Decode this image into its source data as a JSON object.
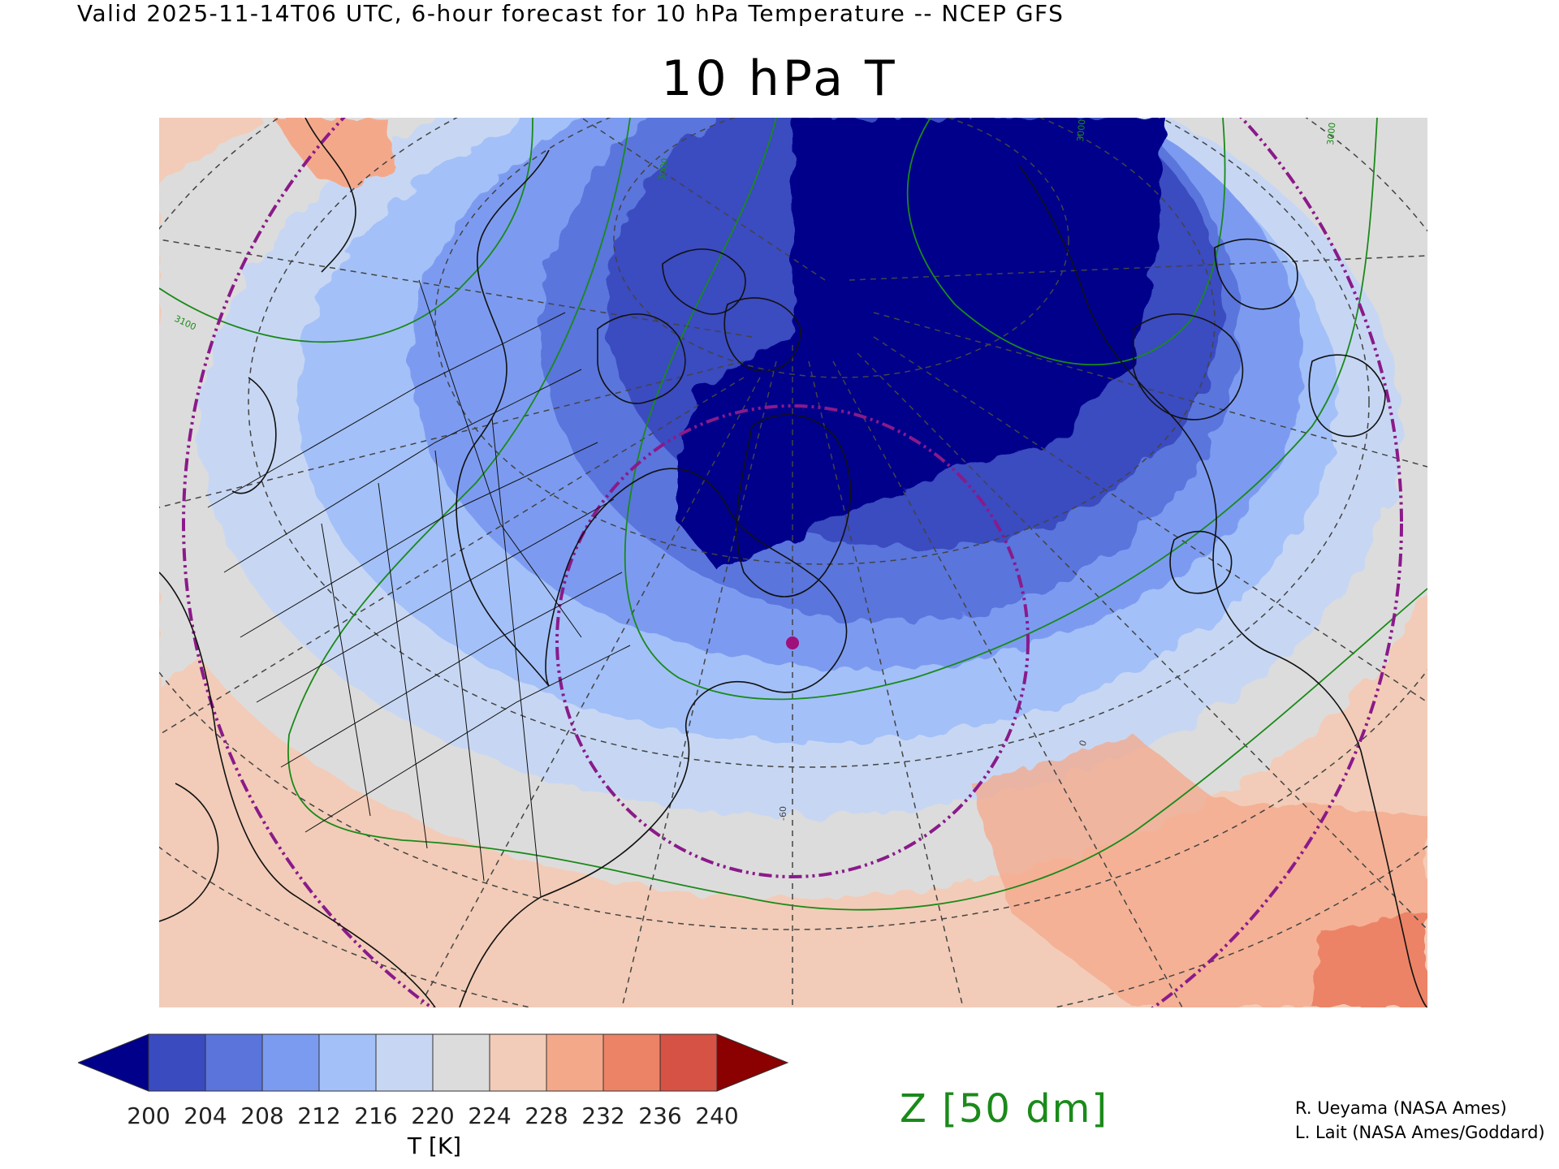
{
  "header": {
    "valid_line": "Valid 2025-11-14T06 UTC, 6-hour forecast for 10 hPa Temperature -- NCEP GFS",
    "title": "10 hPa T"
  },
  "map": {
    "contour_labels": [
      "3100",
      "3000",
      "3000",
      "3000",
      "0",
      "-60"
    ],
    "marker_color": "#a0107a",
    "ring_color": "#8a1a8a",
    "contour_color": "#1a8a1a"
  },
  "colorbar": {
    "ticks": [
      "200",
      "204",
      "208",
      "212",
      "216",
      "220",
      "224",
      "228",
      "232",
      "236",
      "240"
    ],
    "unit": "T [K]",
    "colors": [
      "#00008b",
      "#3a4bc0",
      "#5a74dc",
      "#7b9bf0",
      "#a3c0f8",
      "#c7d7f3",
      "#dddcdc",
      "#f2ccb8",
      "#f4a88a",
      "#ec8366",
      "#d65244",
      "#8b0000"
    ]
  },
  "overlay_label": "Z [50 dm]",
  "credits": [
    "R. Ueyama (NASA Ames)",
    "L. Lait (NASA Ames/Goddard)"
  ]
}
